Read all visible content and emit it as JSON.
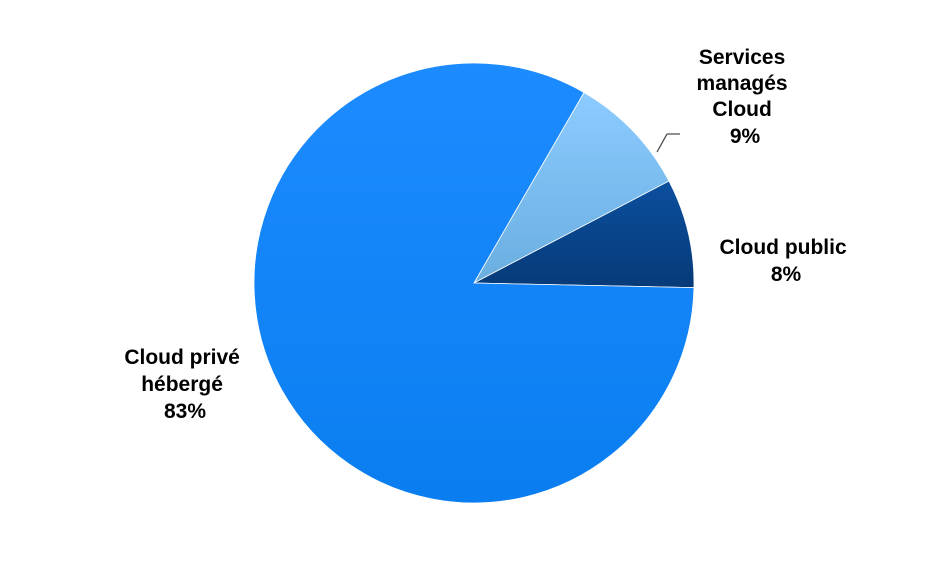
{
  "chart_data": {
    "type": "pie",
    "title": "",
    "start_angle_deg": -60,
    "direction": "clockwise",
    "slices": [
      {
        "label_lines": [
          "Services",
          "managés",
          "Cloud"
        ],
        "percent_label": "9%",
        "value": 9,
        "color": "#6aaee0",
        "color_light": "#8ccbff"
      },
      {
        "label_lines": [
          "Cloud public"
        ],
        "percent_label": "8%",
        "value": 8,
        "color": "#073a78",
        "color_light": "#0a4f9e"
      },
      {
        "label_lines": [
          "Cloud privé",
          "hébergé"
        ],
        "percent_label": "83%",
        "value": 83,
        "color": "#0a7ef0",
        "color_light": "#1c8bff"
      }
    ],
    "legend": "none"
  }
}
